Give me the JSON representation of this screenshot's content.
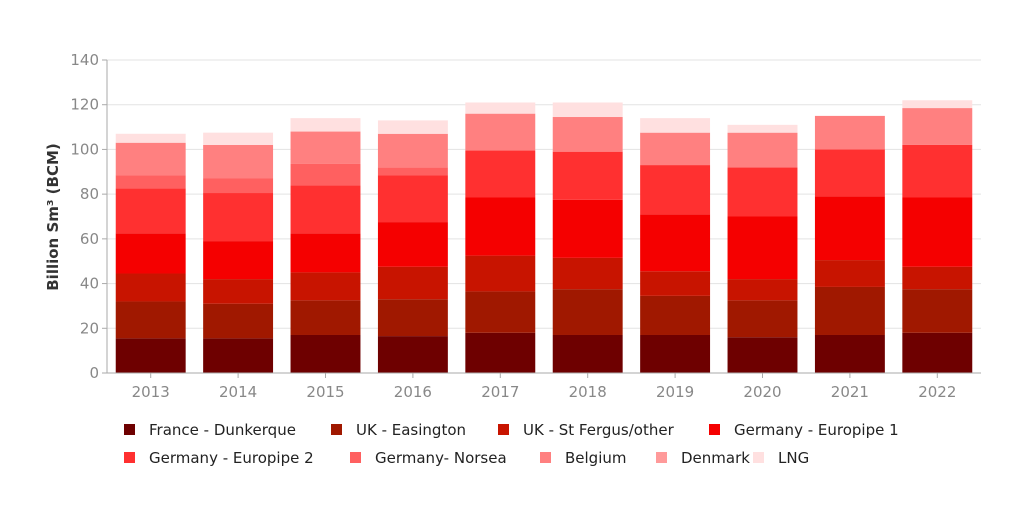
{
  "chart_data": {
    "type": "bar",
    "stacked": true,
    "title": "",
    "xlabel": "",
    "ylabel": "Billion Sm³ (BCM)",
    "ylim": [
      0,
      140
    ],
    "yticks": [
      0,
      20,
      40,
      60,
      80,
      100,
      120,
      140
    ],
    "grid": true,
    "legend_position": "bottom",
    "categories": [
      "2013",
      "2014",
      "2015",
      "2016",
      "2017",
      "2018",
      "2019",
      "2020",
      "2021",
      "2022"
    ],
    "series": [
      {
        "name": "France - Dunkerque",
        "color": "#6e0000",
        "values": [
          15.5,
          15.5,
          17,
          16.5,
          18,
          17,
          17,
          16,
          17,
          18
        ]
      },
      {
        "name": "UK - Easington",
        "color": "#a01800",
        "values": [
          16.5,
          15.5,
          15.5,
          16.5,
          18.5,
          20.5,
          17.5,
          16.5,
          21.5,
          19.5
        ]
      },
      {
        "name": "UK - St Fergus/other",
        "color": "#c81400",
        "values": [
          12.5,
          11,
          12.5,
          14.5,
          16,
          14,
          11,
          9.5,
          12,
          10
        ]
      },
      {
        "name": "Germany - Europipe 1",
        "color": "#f50000",
        "values": [
          18,
          17,
          17.5,
          20,
          26,
          26,
          25.5,
          28,
          28.5,
          31
        ]
      },
      {
        "name": "Germany - Europipe 2",
        "color": "#ff3030",
        "values": [
          20,
          21.5,
          21.5,
          21,
          21,
          21.5,
          22,
          22,
          21,
          23.5
        ]
      },
      {
        "name": "Germany- Norsea",
        "color": "#ff6060",
        "values": [
          6,
          6.5,
          9.5,
          3.5,
          0,
          0,
          0,
          0,
          0,
          0
        ]
      },
      {
        "name": "Belgium",
        "color": "#ff8080",
        "values": [
          14.5,
          15,
          14.5,
          15,
          16.5,
          15.5,
          14.5,
          15.5,
          15,
          16.5
        ]
      },
      {
        "name": "Denmark",
        "color": "#ff9a9a",
        "values": [
          0,
          0,
          0,
          0,
          0,
          0,
          0,
          0,
          0,
          0
        ]
      },
      {
        "name": "LNG",
        "color": "#ffe0e0",
        "values": [
          4,
          5.5,
          6,
          6,
          5,
          6.5,
          6.5,
          3.5,
          0,
          3.5
        ]
      }
    ]
  }
}
